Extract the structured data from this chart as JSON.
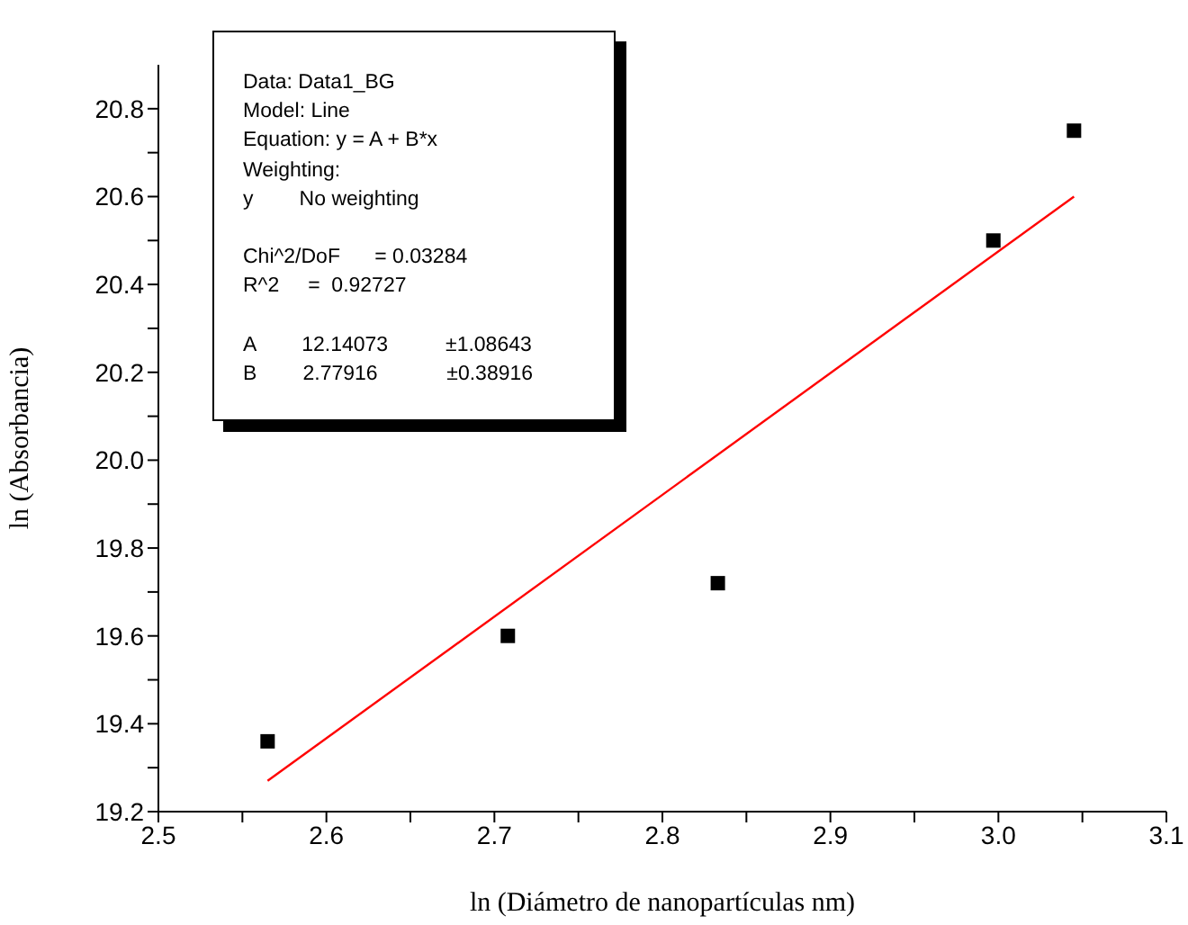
{
  "chart_data": {
    "type": "scatter",
    "xlabel": "ln (Diámetro de nanopartículas nm)",
    "ylabel": "ln (Absorbancia)",
    "xlim": [
      2.5,
      3.1
    ],
    "xticks": [
      2.5,
      {
        "value": 2.55,
        "label": null
      },
      2.6,
      {
        "value": 2.65,
        "label": null
      },
      2.7,
      {
        "value": 2.75,
        "label": null
      },
      2.8,
      {
        "value": 2.85,
        "label": null
      },
      2.9,
      {
        "value": 2.95,
        "label": null
      },
      {
        "value": 3.0,
        "label": "3.0"
      },
      {
        "value": 3.05,
        "label": null
      },
      3.1
    ],
    "ylim": [
      19.2,
      20.9
    ],
    "yticks": [
      19.2,
      {
        "value": 19.3,
        "label": null
      },
      19.4,
      {
        "value": 19.5,
        "label": null
      },
      19.6,
      {
        "value": 19.7,
        "label": null
      },
      19.8,
      {
        "value": 19.9,
        "label": null
      },
      {
        "value": 20.0,
        "label": "20.0"
      },
      {
        "value": 20.1,
        "label": null
      },
      20.2,
      {
        "value": 20.3,
        "label": null
      },
      20.4,
      {
        "value": 20.5,
        "label": null
      },
      20.6,
      {
        "value": 20.7,
        "label": null
      },
      20.8
    ],
    "grid": false,
    "legend": false,
    "series": [
      {
        "type": "scatter",
        "marker": "square",
        "color": "#000000",
        "x": [
          2.565,
          2.708,
          2.833,
          2.997,
          3.045
        ],
        "values": [
          19.36,
          19.6,
          19.72,
          20.5,
          20.75
        ]
      },
      {
        "type": "line",
        "marker": "none",
        "color": "#ff0000",
        "x": [
          2.565,
          3.045
        ],
        "values": [
          19.27,
          20.6
        ]
      }
    ],
    "annotations": [
      "Data: Data1_BG",
      "Model: Line",
      "Equation: y = A + B*x",
      "Weighting:",
      "y        No weighting",
      "Chi^2/DoF      = 0.03284",
      "R^2     =  0.92727",
      "A        12.14073          ±1.08643",
      "B        2.77916            ±0.38916"
    ]
  }
}
